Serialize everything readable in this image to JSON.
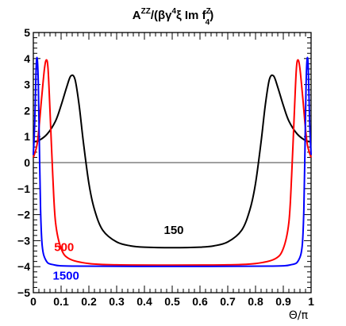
{
  "chart_data": {
    "type": "line",
    "title": {
      "base": "A",
      "sup1": "ZZ",
      "mid1": "/(βγ",
      "sup2": "4",
      "mid2": "ξ Im f",
      "sup3": "Z",
      "sub3": "4",
      "end": ")"
    },
    "xlabel": "Θ/π",
    "ylabel": "",
    "xlim": [
      0,
      1
    ],
    "ylim": [
      -5,
      5
    ],
    "x_ticks": [
      "0",
      "0.1",
      "0.2",
      "0.3",
      "0.4",
      "0.5",
      "0.6",
      "0.7",
      "0.8",
      "0.9",
      "1"
    ],
    "y_ticks": [
      "5",
      "4",
      "3",
      "2",
      "1",
      "0",
      "−1",
      "−2",
      "−3",
      "−4",
      "−5"
    ],
    "legend": "none",
    "series": [
      {
        "name": "150",
        "color": "#000000",
        "points": [
          [
            0,
            0.8
          ],
          [
            0.02,
            0.85
          ],
          [
            0.05,
            1.1
          ],
          [
            0.08,
            1.6
          ],
          [
            0.1,
            2.2
          ],
          [
            0.12,
            2.9
          ],
          [
            0.135,
            3.33
          ],
          [
            0.15,
            3.2
          ],
          [
            0.165,
            2.2
          ],
          [
            0.18,
            0.8
          ],
          [
            0.2,
            -0.8
          ],
          [
            0.22,
            -1.8
          ],
          [
            0.25,
            -2.6
          ],
          [
            0.3,
            -3.05
          ],
          [
            0.35,
            -3.2
          ],
          [
            0.4,
            -3.25
          ],
          [
            0.5,
            -3.27
          ],
          [
            0.6,
            -3.25
          ],
          [
            0.65,
            -3.2
          ],
          [
            0.7,
            -3.05
          ],
          [
            0.75,
            -2.6
          ],
          [
            0.78,
            -1.8
          ],
          [
            0.8,
            -0.8
          ],
          [
            0.82,
            0.8
          ],
          [
            0.835,
            2.2
          ],
          [
            0.85,
            3.2
          ],
          [
            0.865,
            3.33
          ],
          [
            0.88,
            2.9
          ],
          [
            0.9,
            2.2
          ],
          [
            0.92,
            1.6
          ],
          [
            0.95,
            1.1
          ],
          [
            0.98,
            0.85
          ],
          [
            1,
            0.8
          ]
        ]
      },
      {
        "name": "500",
        "color": "#ff0000",
        "points": [
          [
            0,
            0.2
          ],
          [
            0.015,
            0.8
          ],
          [
            0.03,
            2.5
          ],
          [
            0.04,
            3.6
          ],
          [
            0.047,
            3.95
          ],
          [
            0.053,
            3.6
          ],
          [
            0.06,
            2.0
          ],
          [
            0.07,
            -0.5
          ],
          [
            0.08,
            -2.3
          ],
          [
            0.1,
            -3.3
          ],
          [
            0.13,
            -3.7
          ],
          [
            0.2,
            -3.88
          ],
          [
            0.3,
            -3.93
          ],
          [
            0.5,
            -3.94
          ],
          [
            0.7,
            -3.93
          ],
          [
            0.8,
            -3.88
          ],
          [
            0.87,
            -3.7
          ],
          [
            0.9,
            -3.3
          ],
          [
            0.92,
            -2.3
          ],
          [
            0.93,
            -0.5
          ],
          [
            0.94,
            2.0
          ],
          [
            0.947,
            3.6
          ],
          [
            0.953,
            3.95
          ],
          [
            0.96,
            3.6
          ],
          [
            0.97,
            2.5
          ],
          [
            0.985,
            0.8
          ],
          [
            1,
            0.2
          ]
        ]
      },
      {
        "name": "1500",
        "color": "#0000ff",
        "points": [
          [
            0,
            0.3
          ],
          [
            0.005,
            1.5
          ],
          [
            0.01,
            3.6
          ],
          [
            0.014,
            4.0
          ],
          [
            0.018,
            3.0
          ],
          [
            0.022,
            0.5
          ],
          [
            0.026,
            -1.8
          ],
          [
            0.032,
            -3.2
          ],
          [
            0.045,
            -3.75
          ],
          [
            0.07,
            -3.92
          ],
          [
            0.15,
            -3.98
          ],
          [
            0.5,
            -3.99
          ],
          [
            0.85,
            -3.98
          ],
          [
            0.93,
            -3.92
          ],
          [
            0.955,
            -3.75
          ],
          [
            0.968,
            -3.2
          ],
          [
            0.974,
            -1.8
          ],
          [
            0.978,
            0.5
          ],
          [
            0.982,
            3.0
          ],
          [
            0.986,
            4.0
          ],
          [
            0.99,
            3.6
          ],
          [
            0.995,
            1.5
          ],
          [
            1,
            0.3
          ]
        ]
      }
    ],
    "annotations": [
      {
        "text": "150",
        "color": "#000000",
        "x": 0.47,
        "y": -2.75
      },
      {
        "text": "500",
        "color": "#ff0000",
        "x": 0.075,
        "y": -3.4
      },
      {
        "text": "1500",
        "color": "#0000ff",
        "x": 0.07,
        "y": -4.5
      }
    ]
  }
}
